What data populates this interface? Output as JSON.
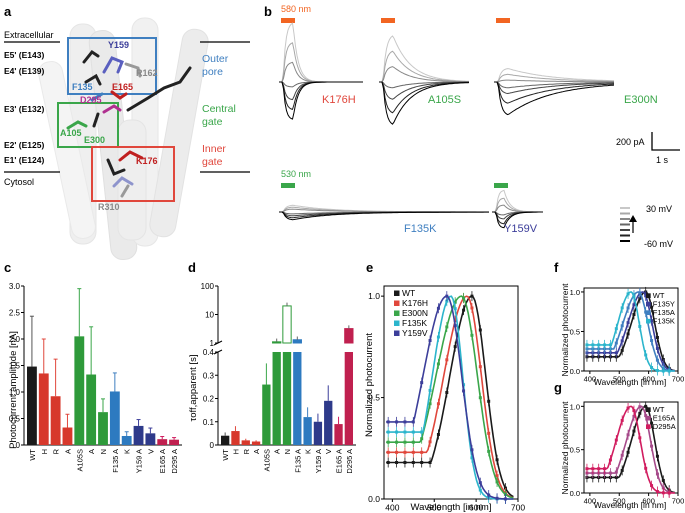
{
  "panel_labels": {
    "a": "a",
    "b": "b",
    "c": "c",
    "d": "d",
    "e": "e",
    "f": "f",
    "g": "g"
  },
  "panel_a": {
    "extracellular": "Extracellular",
    "cytosol": "Cytosol",
    "residues_left": [
      "E5' (E143)",
      "E4' (E139)",
      "E3' (E132)",
      "E2' (E125)",
      "E1' (E124)"
    ],
    "regions": [
      {
        "label_line1": "Outer",
        "label_line2": "pore",
        "color": "#3f7fc0"
      },
      {
        "label_line1": "Central",
        "label_line2": "gate",
        "color": "#3aa64a"
      },
      {
        "label_line1": "Inner",
        "label_line2": "gate",
        "color": "#e0473c"
      }
    ],
    "residue_labels": {
      "Y159": "Y159",
      "R162": "R162",
      "F135": "F135",
      "E165": "E165",
      "D295": "D295",
      "A105": "A105",
      "E300": "E300",
      "K176": "K176",
      "R310": "R310"
    }
  },
  "panel_b": {
    "stim_580": "580 nm",
    "stim_530": "530 nm",
    "mutants": [
      "K176H",
      "A105S",
      "E300N",
      "F135K",
      "Y159V"
    ],
    "scale_current": "200 pA",
    "scale_time": "1 s",
    "voltage_top": "30 mV",
    "voltage_bottom": "-60 mV"
  },
  "chart_data": [
    {
      "type": "bar",
      "panel": "c",
      "title": "",
      "ylabel": "Photocurrent amplitude [nA]",
      "categories": [
        "WT",
        "K176H",
        "K176R",
        "K176A",
        "A105S",
        "E300A",
        "E300N",
        "F135A",
        "F135K",
        "Y159A",
        "Y159V",
        "E165A",
        "D295A"
      ],
      "tick_labels": [
        "WT",
        "H",
        "R",
        "A",
        "A105S",
        "A",
        "N",
        "F135 A",
        "K",
        "Y159 A",
        "V",
        "E165 A",
        "D295 A"
      ],
      "values": [
        1.48,
        1.35,
        0.92,
        0.33,
        2.05,
        1.33,
        0.62,
        1.01,
        0.17,
        0.36,
        0.22,
        0.11,
        0.1
      ],
      "errors": [
        0.95,
        0.65,
        0.7,
        0.25,
        0.9,
        0.9,
        0.25,
        0.35,
        0.08,
        0.12,
        0.1,
        0.05,
        0.04
      ],
      "ylim": [
        0,
        3
      ],
      "yticks": [
        "0",
        "0.5",
        "1.0",
        "1.5",
        "2.0",
        "2.5",
        "3.0"
      ]
    },
    {
      "type": "bar",
      "panel": "d",
      "title": "",
      "ylabel": "τoff,apparent [s]",
      "categories": [
        "WT",
        "K176H",
        "K176R",
        "K176A",
        "A105S",
        "E300A",
        "E300N",
        "F135A",
        "F135K",
        "Y159A",
        "Y159V",
        "E165A",
        "D295A"
      ],
      "tick_labels": [
        "WT",
        "H",
        "R",
        "A",
        "A105S",
        "A",
        "N",
        "F135 A",
        "K",
        "Y159 A",
        "V",
        "E165 A",
        "D295 A"
      ],
      "values": [
        0.04,
        0.06,
        0.02,
        0.015,
        0.26,
        1.1,
        20,
        1.3,
        0.12,
        0.1,
        0.19,
        0.09,
        3.2
      ],
      "yticks_lower": [
        "0",
        "0.1",
        "0.2",
        "0.3",
        "0.4"
      ],
      "yticks_upper": [
        "1",
        "10",
        "100"
      ],
      "scale": "broken: linear 0–0.4, log 1–100"
    },
    {
      "type": "line",
      "panel": "e",
      "xlabel": "Wavelength [in nm]",
      "ylabel": "Normalized photocurrent",
      "xlim": [
        380,
        700
      ],
      "ylim": [
        0,
        1.05
      ],
      "xticks": [
        "400",
        "500",
        "600",
        "700"
      ],
      "yticks": [
        "0.0",
        "0.5",
        "1.0"
      ],
      "series": [
        {
          "name": "WT",
          "color": "#1a1a1a",
          "peak": 590,
          "width": 65
        },
        {
          "name": "K176H",
          "color": "#e0473c",
          "peak": 578,
          "width": 68
        },
        {
          "name": "E300N",
          "color": "#3aa64a",
          "peak": 565,
          "width": 75
        },
        {
          "name": "F135K",
          "color": "#2bb5cc",
          "peak": 540,
          "width": 55
        },
        {
          "name": "Y159V",
          "color": "#3c3e9a",
          "peak": 530,
          "width": 70
        }
      ]
    },
    {
      "type": "line",
      "panel": "f",
      "xlabel": "Wavelength [in nm]",
      "ylabel": "Normalized photocurrent",
      "xlim": [
        380,
        700
      ],
      "ylim": [
        0,
        1.05
      ],
      "xticks": [
        "400",
        "500",
        "600",
        "700"
      ],
      "yticks": [
        "0.0",
        "0.5",
        "1.0"
      ],
      "series": [
        {
          "name": "WT",
          "color": "#1a1a1a",
          "peak": 590,
          "width": 60
        },
        {
          "name": "F135Y",
          "color": "#3c3e9a",
          "peak": 580,
          "width": 62
        },
        {
          "name": "F135A",
          "color": "#3f7fc0",
          "peak": 565,
          "width": 64
        },
        {
          "name": "F135K",
          "color": "#2bb5cc",
          "peak": 540,
          "width": 55
        }
      ]
    },
    {
      "type": "line",
      "panel": "g",
      "xlabel": "Wavelength [in nm]",
      "ylabel": "Normalized photocurrent",
      "xlim": [
        380,
        700
      ],
      "ylim": [
        0,
        1.05
      ],
      "xticks": [
        "400",
        "500",
        "600",
        "700"
      ],
      "yticks": [
        "0.0",
        "0.5",
        "1.0"
      ],
      "series": [
        {
          "name": "WT",
          "color": "#1a1a1a",
          "peak": 590,
          "width": 60
        },
        {
          "name": "E165A",
          "color": "#a64a8a",
          "peak": 575,
          "width": 62
        },
        {
          "name": "D295A",
          "color": "#d11c5f",
          "peak": 540,
          "width": 62
        }
      ]
    }
  ]
}
